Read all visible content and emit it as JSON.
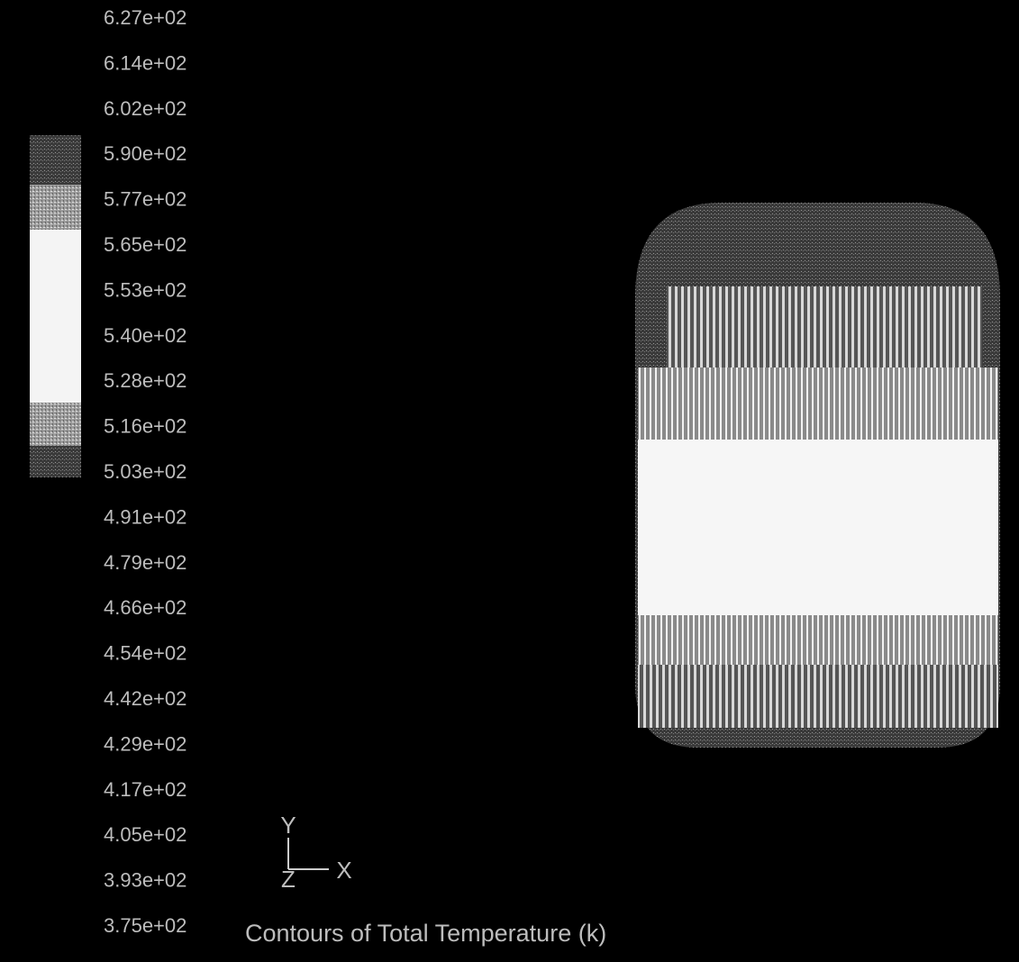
{
  "legend": {
    "labels": [
      "6.27e+02",
      "6.14e+02",
      "6.02e+02",
      "5.90e+02",
      "5.77e+02",
      "5.65e+02",
      "5.53e+02",
      "5.40e+02",
      "5.28e+02",
      "5.16e+02",
      "5.03e+02",
      "4.91e+02",
      "4.79e+02",
      "4.66e+02",
      "4.54e+02",
      "4.42e+02",
      "4.29e+02",
      "4.17e+02",
      "4.05e+02",
      "3.93e+02",
      "3.75e+02"
    ]
  },
  "triad": {
    "y": "Y",
    "z": "Z",
    "x": "X"
  },
  "title": "Contours of Total Temperature (k)"
}
